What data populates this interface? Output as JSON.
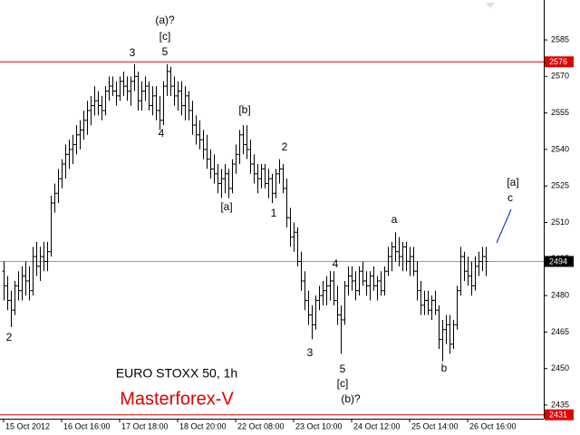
{
  "chart_data": {
    "type": "ohlc",
    "title": "EURO STOXX 50, 1h",
    "subtitle": "Masterforex-V",
    "bar_color": "#000000",
    "ylim": [
      2429.4,
      2601.4
    ],
    "yticks": [
      2435,
      2450,
      2465,
      2480,
      2495,
      2510,
      2525,
      2540,
      2555,
      2570,
      2585
    ],
    "xlim": [
      -1,
      149
    ],
    "xticks": [
      {
        "value": 0,
        "label": "15 Oct 2012"
      },
      {
        "value": 16,
        "label": "16 Oct 16:00"
      },
      {
        "value": 32,
        "label": "17 Oct 18:00"
      },
      {
        "value": 48,
        "label": "18 Oct 20:00"
      },
      {
        "value": 64,
        "label": "22 Oct 08:00"
      },
      {
        "value": 80,
        "label": "23 Oct 10:00"
      },
      {
        "value": 96,
        "label": "24 Oct 12:00"
      },
      {
        "value": 112,
        "label": "25 Oct 14:00"
      },
      {
        "value": 128,
        "label": "26 Oct 16:00"
      }
    ],
    "levels": [
      {
        "value": 2576,
        "color": "#e00000"
      },
      {
        "value": 2494,
        "color": "#000000"
      },
      {
        "value": 2431,
        "color": "#e00000"
      }
    ],
    "wave_labels": [
      "2",
      "3",
      "(a)?",
      "[c]",
      "5",
      "4",
      "[b]",
      "[a]",
      "2",
      "1",
      "4",
      "3",
      "5",
      "[c]",
      "(b)?",
      "a",
      "b",
      "[a]",
      "c"
    ],
    "ohlc": [
      [
        2490,
        2494,
        2478,
        2484
      ],
      [
        2484,
        2488,
        2474,
        2478
      ],
      [
        2478,
        2482,
        2467,
        2474
      ],
      [
        2474,
        2486,
        2472,
        2484
      ],
      [
        2484,
        2490,
        2478,
        2482
      ],
      [
        2482,
        2492,
        2478,
        2488
      ],
      [
        2488,
        2494,
        2480,
        2486
      ],
      [
        2486,
        2492,
        2478,
        2482
      ],
      [
        2482,
        2500,
        2480,
        2496
      ],
      [
        2496,
        2502,
        2488,
        2492
      ],
      [
        2492,
        2500,
        2486,
        2496
      ],
      [
        2496,
        2502,
        2490,
        2494
      ],
      [
        2494,
        2502,
        2490,
        2498
      ],
      [
        2498,
        2521,
        2496,
        2518
      ],
      [
        2518,
        2526,
        2514,
        2522
      ],
      [
        2522,
        2532,
        2518,
        2528
      ],
      [
        2528,
        2536,
        2524,
        2534
      ],
      [
        2534,
        2542,
        2528,
        2538
      ],
      [
        2538,
        2544,
        2532,
        2540
      ],
      [
        2540,
        2546,
        2534,
        2542
      ],
      [
        2542,
        2550,
        2538,
        2546
      ],
      [
        2546,
        2552,
        2540,
        2548
      ],
      [
        2548,
        2556,
        2544,
        2552
      ],
      [
        2552,
        2560,
        2546,
        2556
      ],
      [
        2556,
        2562,
        2550,
        2558
      ],
      [
        2558,
        2566,
        2554,
        2560
      ],
      [
        2560,
        2564,
        2554,
        2558
      ],
      [
        2558,
        2562,
        2552,
        2556
      ],
      [
        2556,
        2566,
        2554,
        2564
      ],
      [
        2564,
        2570,
        2560,
        2566
      ],
      [
        2566,
        2570,
        2562,
        2564
      ],
      [
        2564,
        2568,
        2558,
        2562
      ],
      [
        2562,
        2570,
        2560,
        2568
      ],
      [
        2568,
        2572,
        2562,
        2566
      ],
      [
        2566,
        2570,
        2560,
        2564
      ],
      [
        2564,
        2570,
        2558,
        2568
      ],
      [
        2568,
        2575,
        2564,
        2570
      ],
      [
        2570,
        2572,
        2556,
        2560
      ],
      [
        2560,
        2568,
        2556,
        2564
      ],
      [
        2564,
        2570,
        2560,
        2566
      ],
      [
        2566,
        2568,
        2556,
        2558
      ],
      [
        2558,
        2566,
        2554,
        2562
      ],
      [
        2562,
        2566,
        2552,
        2556
      ],
      [
        2556,
        2562,
        2548,
        2552
      ],
      [
        2552,
        2568,
        2550,
        2566
      ],
      [
        2566,
        2575,
        2562,
        2572
      ],
      [
        2572,
        2574,
        2562,
        2566
      ],
      [
        2566,
        2570,
        2558,
        2562
      ],
      [
        2562,
        2568,
        2556,
        2564
      ],
      [
        2564,
        2568,
        2554,
        2558
      ],
      [
        2558,
        2566,
        2552,
        2562
      ],
      [
        2562,
        2564,
        2552,
        2556
      ],
      [
        2556,
        2560,
        2546,
        2550
      ],
      [
        2550,
        2554,
        2542,
        2546
      ],
      [
        2546,
        2552,
        2540,
        2544
      ],
      [
        2544,
        2548,
        2536,
        2540
      ],
      [
        2540,
        2546,
        2532,
        2536
      ],
      [
        2536,
        2540,
        2528,
        2532
      ],
      [
        2532,
        2538,
        2526,
        2530
      ],
      [
        2530,
        2534,
        2522,
        2526
      ],
      [
        2526,
        2532,
        2520,
        2528
      ],
      [
        2528,
        2534,
        2522,
        2530
      ],
      [
        2530,
        2532,
        2520,
        2524
      ],
      [
        2524,
        2536,
        2522,
        2534
      ],
      [
        2534,
        2542,
        2530,
        2538
      ],
      [
        2538,
        2548,
        2534,
        2546
      ],
      [
        2546,
        2550,
        2538,
        2542
      ],
      [
        2542,
        2550,
        2536,
        2540
      ],
      [
        2540,
        2544,
        2530,
        2534
      ],
      [
        2534,
        2538,
        2526,
        2530
      ],
      [
        2530,
        2534,
        2522,
        2528
      ],
      [
        2528,
        2534,
        2524,
        2532
      ],
      [
        2532,
        2534,
        2524,
        2526
      ],
      [
        2526,
        2532,
        2520,
        2528
      ],
      [
        2528,
        2530,
        2518,
        2522
      ],
      [
        2522,
        2532,
        2520,
        2530
      ],
      [
        2530,
        2536,
        2526,
        2532
      ],
      [
        2532,
        2534,
        2522,
        2524
      ],
      [
        2524,
        2528,
        2508,
        2512
      ],
      [
        2512,
        2516,
        2500,
        2504
      ],
      [
        2504,
        2510,
        2498,
        2506
      ],
      [
        2506,
        2508,
        2492,
        2494
      ],
      [
        2494,
        2498,
        2482,
        2486
      ],
      [
        2486,
        2490,
        2474,
        2478
      ],
      [
        2478,
        2482,
        2468,
        2472
      ],
      [
        2472,
        2476,
        2462,
        2468
      ],
      [
        2468,
        2480,
        2466,
        2478
      ],
      [
        2478,
        2484,
        2474,
        2480
      ],
      [
        2480,
        2486,
        2476,
        2482
      ],
      [
        2482,
        2488,
        2476,
        2484
      ],
      [
        2484,
        2490,
        2478,
        2486
      ],
      [
        2486,
        2490,
        2476,
        2478
      ],
      [
        2478,
        2484,
        2468,
        2472
      ],
      [
        2472,
        2476,
        2456,
        2470
      ],
      [
        2470,
        2486,
        2468,
        2484
      ],
      [
        2484,
        2492,
        2480,
        2488
      ],
      [
        2488,
        2492,
        2482,
        2486
      ],
      [
        2486,
        2490,
        2478,
        2482
      ],
      [
        2482,
        2492,
        2480,
        2490
      ],
      [
        2490,
        2494,
        2484,
        2486
      ],
      [
        2486,
        2490,
        2480,
        2484
      ],
      [
        2484,
        2490,
        2478,
        2488
      ],
      [
        2488,
        2492,
        2482,
        2484
      ],
      [
        2484,
        2488,
        2478,
        2486
      ],
      [
        2486,
        2490,
        2480,
        2482
      ],
      [
        2482,
        2492,
        2480,
        2490
      ],
      [
        2490,
        2500,
        2488,
        2496
      ],
      [
        2496,
        2502,
        2490,
        2500
      ],
      [
        2500,
        2506,
        2494,
        2498
      ],
      [
        2498,
        2504,
        2492,
        2496
      ],
      [
        2496,
        2502,
        2490,
        2500
      ],
      [
        2500,
        2502,
        2490,
        2494
      ],
      [
        2494,
        2500,
        2488,
        2496
      ],
      [
        2496,
        2500,
        2488,
        2490
      ],
      [
        2490,
        2494,
        2478,
        2482
      ],
      [
        2482,
        2486,
        2472,
        2476
      ],
      [
        2476,
        2482,
        2472,
        2478
      ],
      [
        2478,
        2482,
        2472,
        2474
      ],
      [
        2474,
        2480,
        2470,
        2478
      ],
      [
        2478,
        2482,
        2472,
        2474
      ],
      [
        2474,
        2476,
        2458,
        2462
      ],
      [
        2462,
        2470,
        2453,
        2466
      ],
      [
        2466,
        2472,
        2460,
        2468
      ],
      [
        2468,
        2472,
        2456,
        2460
      ],
      [
        2460,
        2470,
        2458,
        2468
      ],
      [
        2468,
        2484,
        2466,
        2482
      ],
      [
        2482,
        2500,
        2480,
        2496
      ],
      [
        2496,
        2498,
        2486,
        2490
      ],
      [
        2490,
        2496,
        2484,
        2488
      ],
      [
        2488,
        2494,
        2480,
        2484
      ],
      [
        2484,
        2496,
        2482,
        2492
      ],
      [
        2492,
        2498,
        2488,
        2494
      ],
      [
        2494,
        2500,
        2490,
        2496
      ],
      [
        2496,
        2500,
        2488,
        2494
      ]
    ]
  }
}
